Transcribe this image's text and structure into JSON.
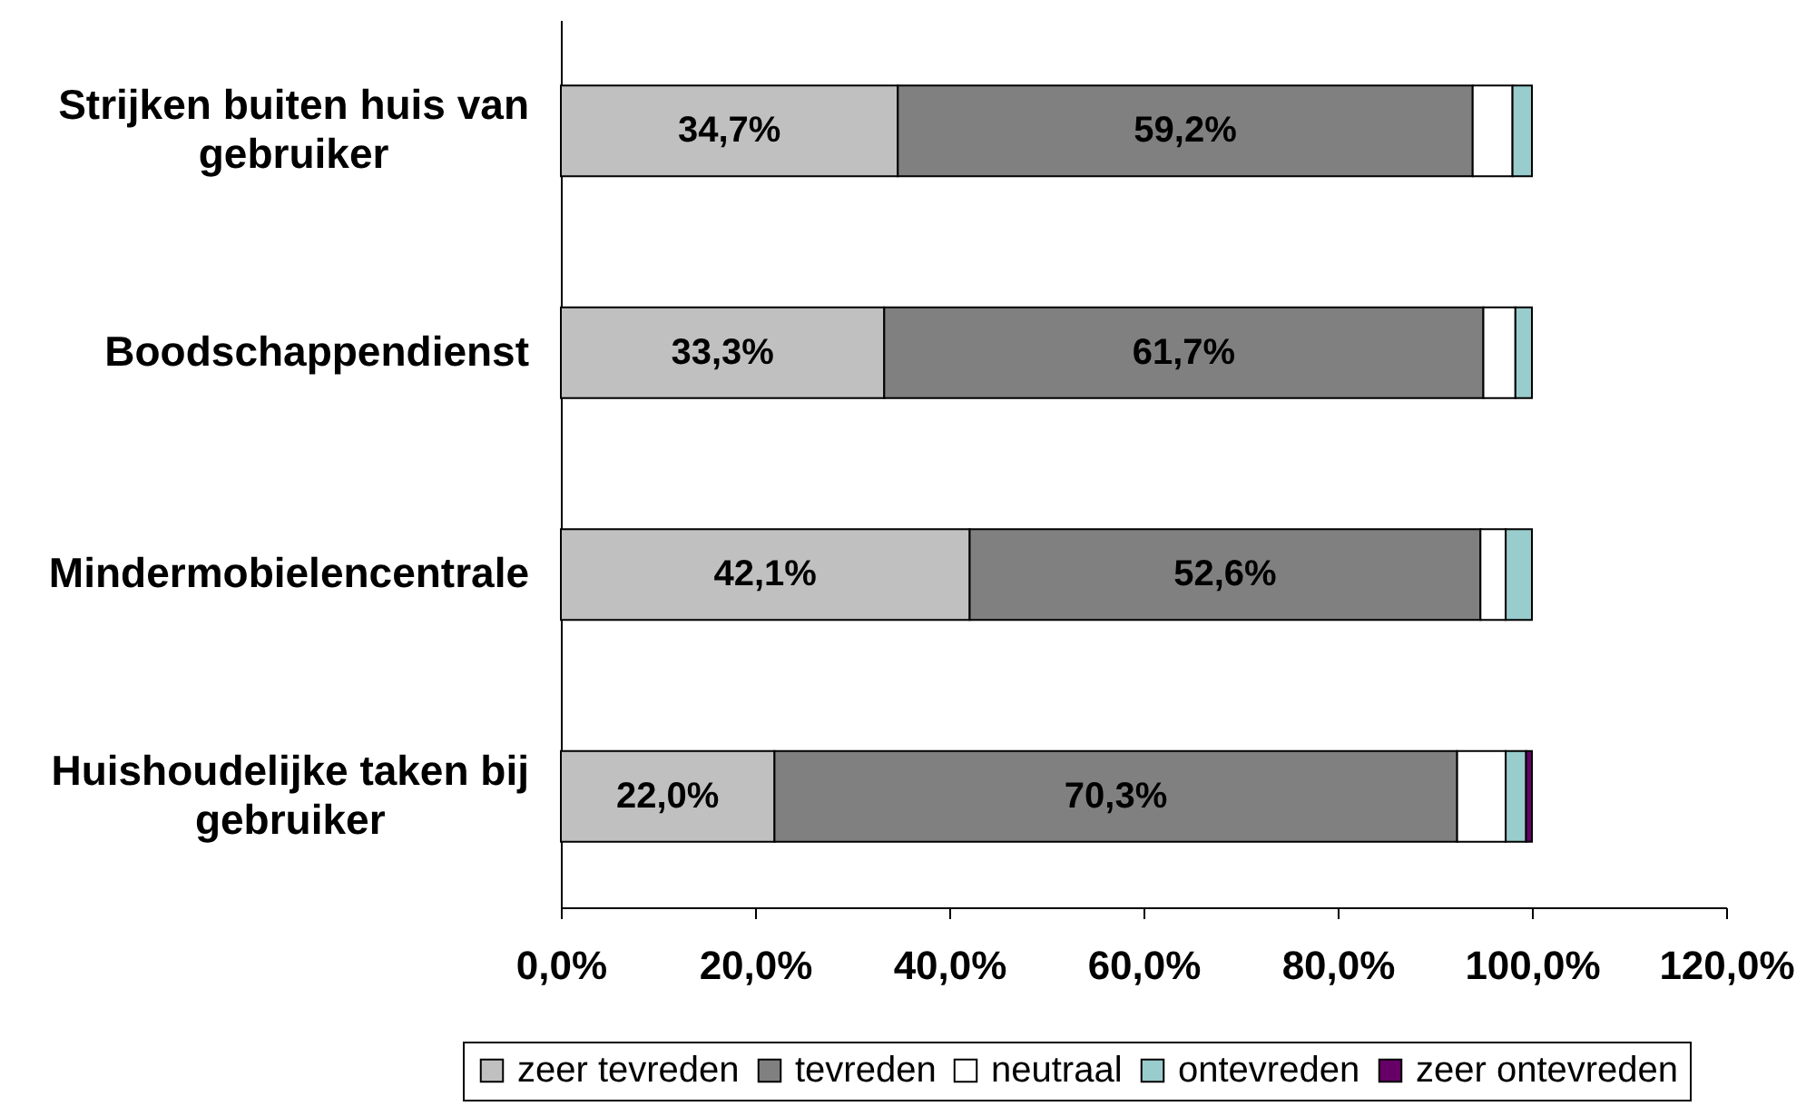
{
  "chart_data": {
    "type": "bar",
    "orientation": "horizontal",
    "stacked": true,
    "categories": [
      "Strijken buiten huis van gebruiker",
      "Boodschappendienst",
      "Mindermobielencentrale",
      "Huishoudelijke taken bij gebruiker"
    ],
    "series": [
      {
        "name": "zeer tevreden",
        "color": "#c0c0c0",
        "values": [
          34.7,
          33.3,
          42.1,
          22.0
        ],
        "value_labels": [
          "34,7%",
          "33,3%",
          "42,1%",
          "22,0%"
        ]
      },
      {
        "name": "tevreden",
        "color": "#808080",
        "values": [
          59.2,
          61.7,
          52.6,
          70.3
        ],
        "value_labels": [
          "59,2%",
          "61,7%",
          "52,6%",
          "70,3%"
        ]
      },
      {
        "name": "neutraal",
        "color": "#ffffff",
        "values": [
          4.1,
          3.3,
          2.6,
          5.0
        ]
      },
      {
        "name": "ontevreden",
        "color": "#99cccc",
        "values": [
          2.0,
          1.7,
          2.7,
          2.1
        ]
      },
      {
        "name": "zeer ontevreden",
        "color": "#660066",
        "values": [
          null,
          null,
          null,
          0.6
        ]
      }
    ],
    "xlim": [
      0,
      120
    ],
    "xticks": [
      {
        "value": 0,
        "label": "0,0%"
      },
      {
        "value": 20,
        "label": "20,0%"
      },
      {
        "value": 40,
        "label": "40,0%"
      },
      {
        "value": 60,
        "label": "60,0%"
      },
      {
        "value": 80,
        "label": "80,0%"
      },
      {
        "value": 100,
        "label": "100,0%"
      },
      {
        "value": 120,
        "label": "120,0%"
      }
    ],
    "legend": "bottom",
    "grid": false
  }
}
